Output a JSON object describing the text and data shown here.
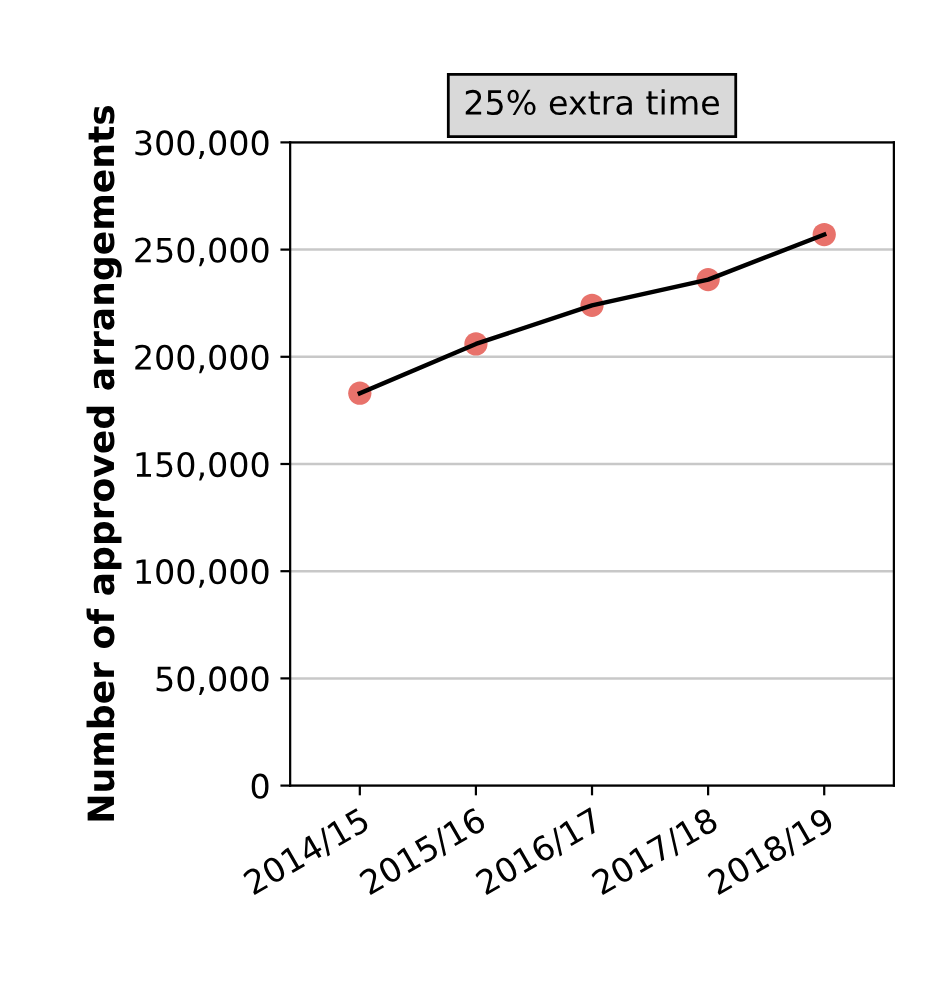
{
  "chart_data": {
    "type": "line",
    "title": "25% extra time",
    "ylabel": "Number of approved arrangements",
    "categories": [
      "2014/15",
      "2015/16",
      "2016/17",
      "2017/18",
      "2018/19"
    ],
    "series": [
      {
        "color": "#000000",
        "values": [
          183000,
          206000,
          224000,
          236000,
          257000
        ]
      },
      {
        "type": "scatter",
        "marker": "circle",
        "color": "#e8726b",
        "values": [
          183000,
          206000,
          224000,
          236000,
          257000
        ]
      }
    ],
    "ylim": [
      0,
      300000
    ],
    "yticks": [
      {
        "value": 0,
        "label": "0"
      },
      {
        "value": 50000,
        "label": "50,000"
      },
      {
        "value": 100000,
        "label": "100,000"
      },
      {
        "value": 150000,
        "label": "150,000"
      },
      {
        "value": 200000,
        "label": "200,000"
      },
      {
        "value": 250000,
        "label": "250,000"
      },
      {
        "value": 300000,
        "label": "300,000"
      }
    ],
    "grid": "y"
  }
}
